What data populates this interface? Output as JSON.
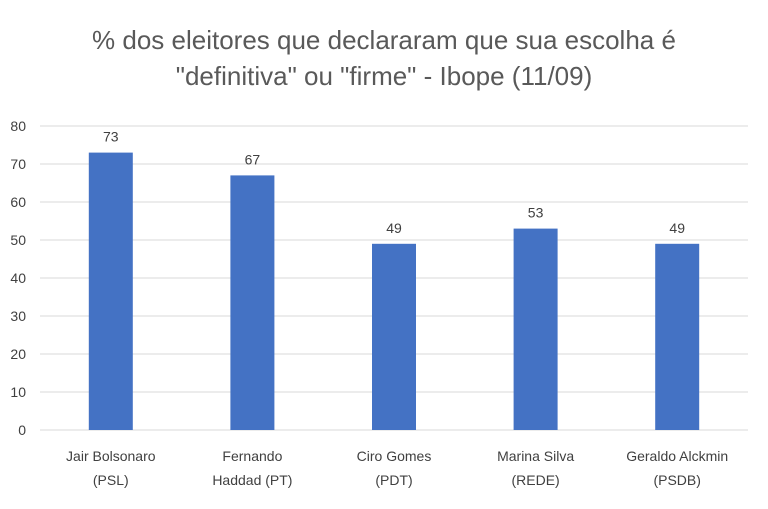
{
  "chart_data": {
    "type": "bar",
    "title_line1": "% dos eleitores que declararam que sua escolha é",
    "title_line2": "\"definitiva\" ou \"firme\" - Ibope (11/09)",
    "categories": [
      [
        "Jair Bolsonaro",
        "(PSL)"
      ],
      [
        "Fernando",
        "Haddad (PT)"
      ],
      [
        "Ciro Gomes",
        "(PDT)"
      ],
      [
        "Marina Silva",
        "(REDE)"
      ],
      [
        "Geraldo Alckmin",
        "(PSDB)"
      ]
    ],
    "values": [
      73,
      67,
      49,
      53,
      49
    ],
    "ylim": [
      0,
      80
    ],
    "yticks": [
      0,
      10,
      20,
      30,
      40,
      50,
      60,
      70,
      80
    ],
    "grid": true,
    "bar_color": "#4472C4",
    "grid_color": "#D9D9D9"
  }
}
